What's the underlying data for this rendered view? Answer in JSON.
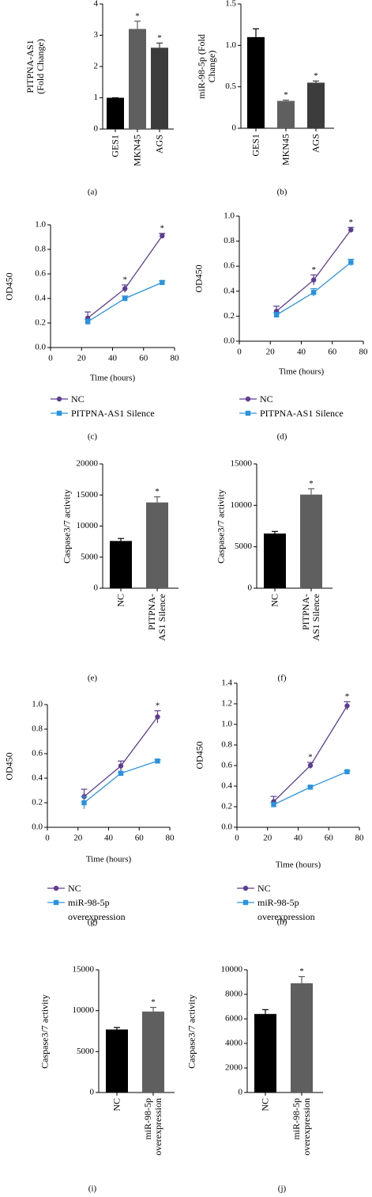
{
  "chart_data": [
    {
      "type": "bar",
      "panel_label": "(a)",
      "ylabel": "PITPNA-AS1 (Fold Change)",
      "categories": [
        "GES1",
        "MKN45",
        "AGS"
      ],
      "values": [
        1,
        3.2,
        2.6
      ],
      "errors": [
        0,
        0.25,
        0.15
      ],
      "colors": [
        "#000000",
        "#5f5f60",
        "#3c3c3c"
      ],
      "significance": [
        null,
        "*",
        "*"
      ],
      "ylim": [
        0,
        4
      ],
      "yticks": [
        0,
        1,
        2,
        3,
        4
      ]
    },
    {
      "type": "bar",
      "panel_label": "(b)",
      "ylabel": "miR-98-5p (Fold Change)",
      "categories": [
        "GES1",
        "MKN45",
        "AGS"
      ],
      "values": [
        1.1,
        0.33,
        0.55
      ],
      "errors": [
        0.1,
        0.01,
        0.02
      ],
      "colors": [
        "#000000",
        "#5f5f60",
        "#3c3c3c"
      ],
      "significance": [
        null,
        "*",
        "*"
      ],
      "ylim": [
        0,
        1.5
      ],
      "yticks": [
        0,
        0.5,
        {
          "value": 1,
          "label": "1.0"
        },
        1.5
      ]
    },
    {
      "type": "line",
      "panel_label": "(c)",
      "xlabel": "Time (hours)",
      "ylabel": "OD450",
      "x": [
        24,
        48,
        72
      ],
      "series": [
        {
          "name": "NC",
          "color": "#5c3d91",
          "marker": "circle",
          "values": [
            0.24,
            0.48,
            0.91
          ],
          "errors": [
            0.05,
            0.03,
            0.02
          ],
          "significance": [
            null,
            "*",
            "*"
          ]
        },
        {
          "name": "PITPNA-AS1 Silence",
          "color": "#2a93df",
          "marker": "square",
          "values": [
            0.21,
            0.4,
            0.53
          ],
          "errors": [
            0.02,
            0.02,
            0.015
          ]
        }
      ],
      "xlim": [
        0,
        80
      ],
      "xticks": [
        0,
        20,
        40,
        60,
        80
      ],
      "ylim": [
        0,
        1
      ],
      "yticks": [
        {
          "value": 0,
          "label": "0.0"
        },
        0.2,
        0.4,
        0.6,
        0.8,
        {
          "value": 1,
          "label": "1.0"
        }
      ]
    },
    {
      "type": "line",
      "panel_label": "(d)",
      "xlabel": "Time (hours)",
      "ylabel": "OD450",
      "x": [
        24,
        48,
        72
      ],
      "series": [
        {
          "name": "NC",
          "color": "#5c3d91",
          "marker": "circle",
          "values": [
            0.24,
            0.49,
            0.89
          ],
          "errors": [
            0.04,
            0.04,
            0.02
          ],
          "significance": [
            null,
            "*",
            "*"
          ]
        },
        {
          "name": "PITPNA-AS1 Silence",
          "color": "#2a93df",
          "marker": "square",
          "values": [
            0.21,
            0.39,
            0.63
          ],
          "errors": [
            0.02,
            0.03,
            0.025
          ]
        }
      ],
      "xlim": [
        0,
        80
      ],
      "xticks": [
        0,
        20,
        40,
        60,
        80
      ],
      "ylim": [
        0,
        1
      ],
      "yticks": [
        {
          "value": 0,
          "label": "0.0"
        },
        0.2,
        0.4,
        0.6,
        0.8,
        {
          "value": 1,
          "label": "1.0"
        }
      ]
    },
    {
      "type": "bar",
      "panel_label": "(e)",
      "ylabel": "Caspase3/7 activity",
      "categories": [
        "NC",
        "PITPNA-AS1 Silence"
      ],
      "values": [
        7600,
        13800
      ],
      "errors": [
        400,
        900
      ],
      "colors": [
        "#000000",
        "#5f5f60"
      ],
      "significance": [
        null,
        "*"
      ],
      "ylim": [
        0,
        20000
      ],
      "yticks": [
        0,
        5000,
        10000,
        15000,
        20000
      ]
    },
    {
      "type": "bar",
      "panel_label": "(f)",
      "ylabel": "Caspase3/7 activity",
      "categories": [
        "NC",
        "PITPNA-AS1 Silence"
      ],
      "values": [
        6600,
        11300
      ],
      "errors": [
        250,
        700
      ],
      "colors": [
        "#000000",
        "#5f5f60"
      ],
      "significance": [
        null,
        "*"
      ],
      "ylim": [
        0,
        15000
      ],
      "yticks": [
        0,
        5000,
        10000,
        15000
      ]
    },
    {
      "type": "line",
      "panel_label": "(g)",
      "xlabel": "Time (hours)",
      "ylabel": "OD450",
      "x": [
        24,
        48,
        72
      ],
      "series": [
        {
          "name": "NC",
          "color": "#5c3d91",
          "marker": "circle",
          "values": [
            0.25,
            0.5,
            0.9
          ],
          "errors": [
            0.06,
            0.04,
            0.05
          ],
          "significance": [
            null,
            null,
            "*"
          ]
        },
        {
          "name": "miR-98-5p overexpression",
          "color": "#2a93df",
          "marker": "square",
          "values": [
            0.2,
            0.44,
            0.54
          ],
          "errors": [
            0.05,
            0.01,
            0.01
          ]
        }
      ],
      "xlim": [
        0,
        80
      ],
      "xticks": [
        0,
        20,
        40,
        60,
        80
      ],
      "ylim": [
        0,
        1
      ],
      "yticks": [
        {
          "value": 0,
          "label": "0.0"
        },
        0.2,
        0.4,
        0.6,
        0.8,
        {
          "value": 1,
          "label": "1.0"
        }
      ]
    },
    {
      "type": "line",
      "panel_label": "(h)",
      "xlabel": "Time (hours)",
      "ylabel": "OD450",
      "x": [
        24,
        48,
        72
      ],
      "series": [
        {
          "name": "NC",
          "color": "#5c3d91",
          "marker": "circle",
          "values": [
            0.25,
            0.6,
            1.18
          ],
          "errors": [
            0.05,
            0.03,
            0.04
          ],
          "significance": [
            null,
            "*",
            "*"
          ]
        },
        {
          "name": "miR-98-5p overexpression",
          "color": "#2a93df",
          "marker": "square",
          "values": [
            0.22,
            0.39,
            0.54
          ],
          "errors": [
            0.02,
            0.01,
            0.01
          ]
        }
      ],
      "xlim": [
        0,
        80
      ],
      "xticks": [
        0,
        20,
        40,
        60,
        80
      ],
      "ylim": [
        0,
        1.4
      ],
      "yticks": [
        {
          "value": 0,
          "label": "0.0"
        },
        0.2,
        0.4,
        0.6,
        0.8,
        {
          "value": 1,
          "label": "1.0"
        },
        1.2,
        1.4
      ]
    },
    {
      "type": "bar",
      "panel_label": "(i)",
      "ylabel": "Caspase3/7 activity",
      "categories": [
        "NC",
        "miR-98-5p overexpression"
      ],
      "values": [
        7700,
        9900
      ],
      "errors": [
        250,
        500
      ],
      "colors": [
        "#000000",
        "#5f5f60"
      ],
      "significance": [
        null,
        "*"
      ],
      "ylim": [
        0,
        15000
      ],
      "yticks": [
        0,
        5000,
        10000,
        15000
      ]
    },
    {
      "type": "bar",
      "panel_label": "(j)",
      "ylabel": "Caspase3/7 activity",
      "categories": [
        "NC",
        "miR-98-5p overexpression"
      ],
      "values": [
        6400,
        8900
      ],
      "errors": [
        350,
        550
      ],
      "colors": [
        "#000000",
        "#5f5f60"
      ],
      "significance": [
        null,
        "*"
      ],
      "ylim": [
        0,
        10000
      ],
      "yticks": [
        0,
        2000,
        4000,
        6000,
        8000,
        10000
      ]
    }
  ]
}
